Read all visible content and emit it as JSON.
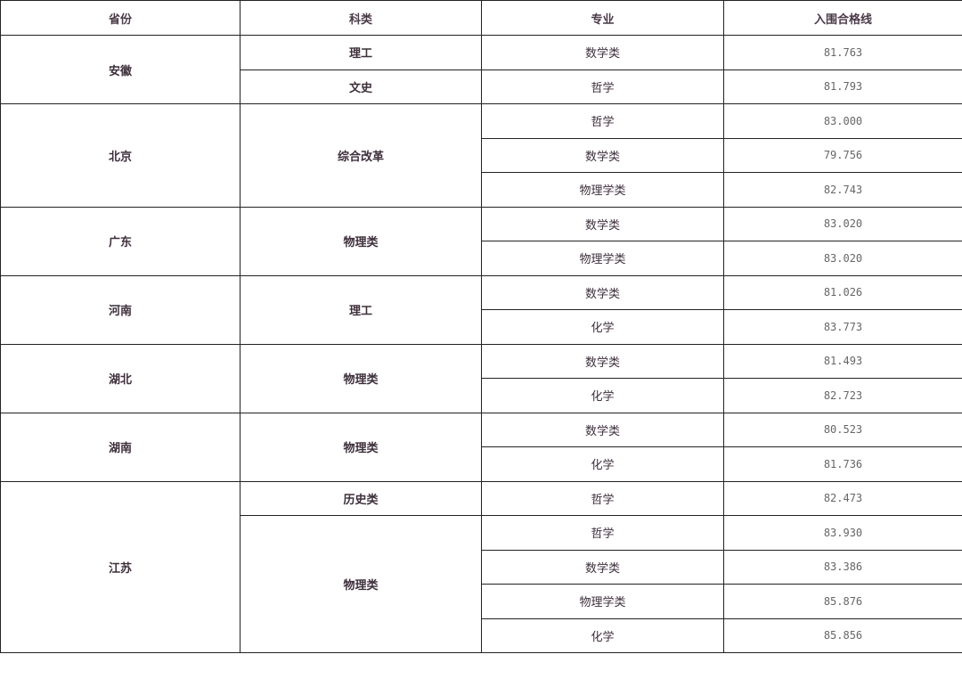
{
  "table": {
    "headers": [
      "省份",
      "科类",
      "专业",
      "入围合格线"
    ],
    "provinces": [
      {
        "name": "安徽",
        "categories": [
          {
            "name": "理工",
            "majors": [
              {
                "major": "数学类",
                "score": "81.763"
              }
            ]
          },
          {
            "name": "文史",
            "majors": [
              {
                "major": "哲学",
                "score": "81.793"
              }
            ]
          }
        ]
      },
      {
        "name": "北京",
        "categories": [
          {
            "name": "综合改革",
            "majors": [
              {
                "major": "哲学",
                "score": "83.000"
              },
              {
                "major": "数学类",
                "score": "79.756"
              },
              {
                "major": "物理学类",
                "score": "82.743"
              }
            ]
          }
        ]
      },
      {
        "name": "广东",
        "categories": [
          {
            "name": "物理类",
            "majors": [
              {
                "major": "数学类",
                "score": "83.020"
              },
              {
                "major": "物理学类",
                "score": "83.020"
              }
            ]
          }
        ]
      },
      {
        "name": "河南",
        "categories": [
          {
            "name": "理工",
            "majors": [
              {
                "major": "数学类",
                "score": "81.026"
              },
              {
                "major": "化学",
                "score": "83.773"
              }
            ]
          }
        ]
      },
      {
        "name": "湖北",
        "categories": [
          {
            "name": "物理类",
            "majors": [
              {
                "major": "数学类",
                "score": "81.493"
              },
              {
                "major": "化学",
                "score": "82.723"
              }
            ]
          }
        ]
      },
      {
        "name": "湖南",
        "categories": [
          {
            "name": "物理类",
            "majors": [
              {
                "major": "数学类",
                "score": "80.523"
              },
              {
                "major": "化学",
                "score": "81.736"
              }
            ]
          }
        ]
      },
      {
        "name": "江苏",
        "categories": [
          {
            "name": "历史类",
            "majors": [
              {
                "major": "哲学",
                "score": "82.473"
              }
            ]
          },
          {
            "name": "物理类",
            "majors": [
              {
                "major": "哲学",
                "score": "83.930"
              },
              {
                "major": "数学类",
                "score": "83.386"
              },
              {
                "major": "物理学类",
                "score": "85.876"
              },
              {
                "major": "化学",
                "score": "85.856"
              }
            ]
          }
        ]
      }
    ]
  }
}
